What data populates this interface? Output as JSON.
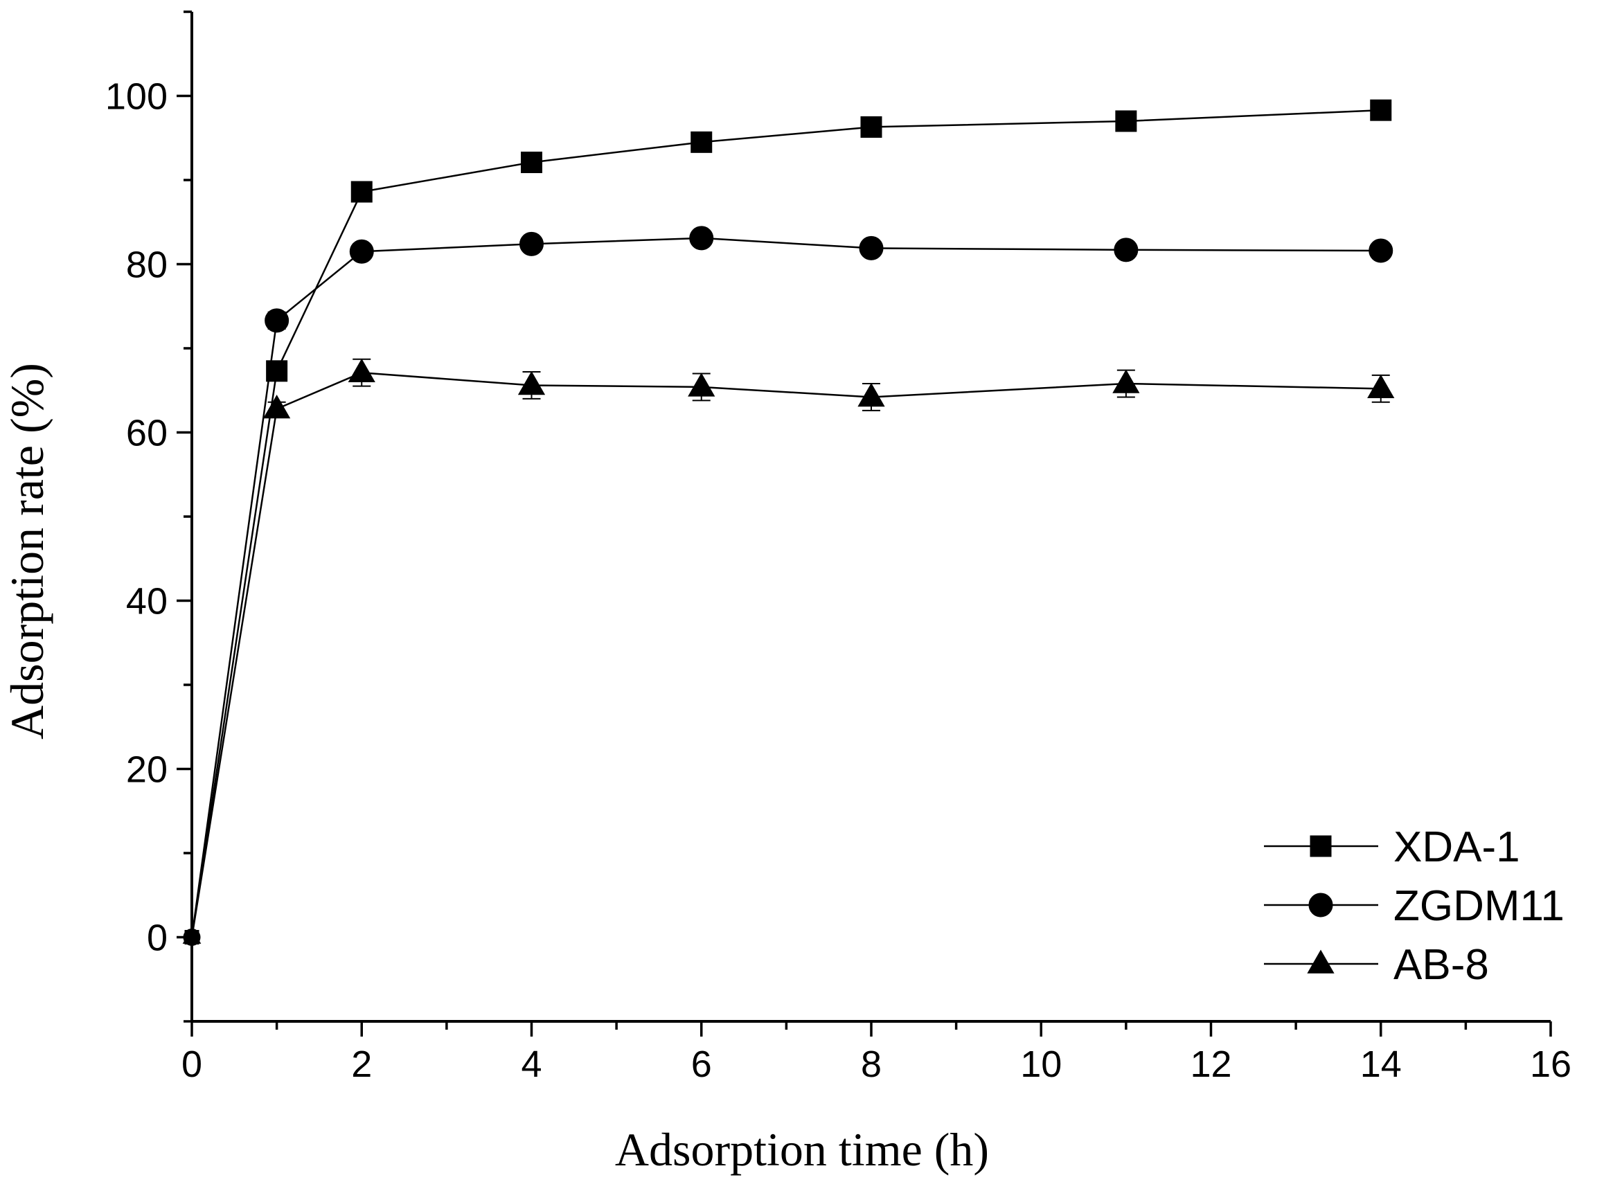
{
  "chart_data": {
    "type": "line",
    "title": "",
    "xlabel": "Adsorption time (h)",
    "ylabel": "Adsorption rate (%)",
    "xlim": [
      0,
      16
    ],
    "ylim": [
      -10,
      110
    ],
    "xticks": [
      0,
      2,
      4,
      6,
      8,
      10,
      12,
      14,
      16
    ],
    "xtick_labels": [
      "0",
      "2",
      "4",
      "6",
      "8",
      "10",
      "12",
      "14",
      "16"
    ],
    "yticks": [
      0,
      20,
      40,
      60,
      80,
      100
    ],
    "ytick_labels": [
      "0",
      "20",
      "40",
      "60",
      "80",
      "100"
    ],
    "x": [
      0,
      1,
      2,
      4,
      6,
      8,
      11,
      14
    ],
    "series": [
      {
        "name": "XDA-1",
        "marker": "square",
        "values": [
          0,
          67.3,
          88.6,
          92.1,
          94.5,
          96.3,
          97.0,
          98.3
        ],
        "errors": [
          0,
          0.6,
          0.6,
          0.6,
          0.6,
          0.6,
          0.6,
          0.6
        ]
      },
      {
        "name": "ZGDM11",
        "marker": "circle",
        "values": [
          0,
          73.3,
          81.5,
          82.4,
          83.1,
          81.9,
          81.7,
          81.6
        ],
        "errors": [
          0,
          1.0,
          0.8,
          0.8,
          0.8,
          0.8,
          0.8,
          0.8
        ]
      },
      {
        "name": "AB-8",
        "marker": "triangle",
        "values": [
          0,
          62.8,
          67.1,
          65.6,
          65.4,
          64.2,
          65.8,
          65.2
        ],
        "errors": [
          0,
          0.8,
          1.6,
          1.6,
          1.6,
          1.6,
          1.6,
          1.6
        ]
      }
    ],
    "legend_position": "bottom-right",
    "grid": false
  },
  "colors": {
    "ink": "#000000",
    "background": "#ffffff"
  }
}
